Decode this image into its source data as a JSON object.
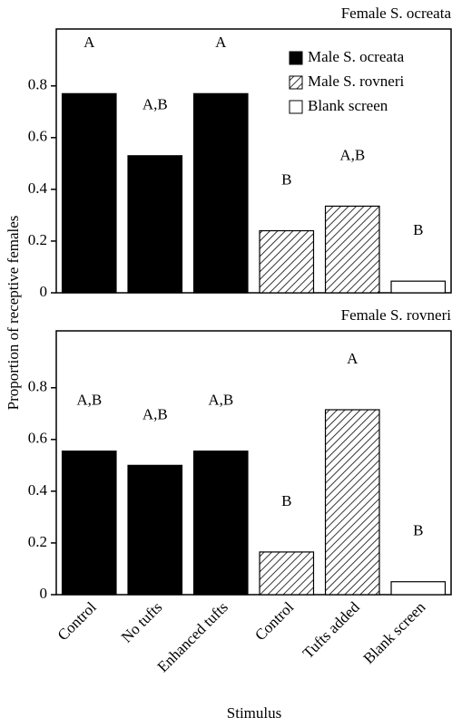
{
  "ylabel": "Proportion of receptive females",
  "xlabel": "Stimulus",
  "chart_data": [
    {
      "type": "bar",
      "title": "Female S. ocreata",
      "legend": "upper right",
      "ylim": [
        0,
        1.02
      ],
      "yticks": [
        0,
        0.2,
        0.4,
        0.6,
        0.8
      ],
      "series": [
        {
          "name": "Male S. ocreata",
          "color": "#000000",
          "fill": "solid",
          "values": [
            0.77,
            0.53,
            0.77,
            null,
            null,
            null
          ]
        },
        {
          "name": "Male S. rovneri",
          "color": "#000000",
          "fill": "hatch",
          "values": [
            null,
            null,
            null,
            0.24,
            0.335,
            null
          ]
        },
        {
          "name": "Blank screen",
          "color": "#ffffff",
          "fill": "solid",
          "values": [
            null,
            null,
            null,
            null,
            null,
            0.045
          ]
        }
      ],
      "annotations": [
        "A",
        "A,B",
        "A",
        "B",
        "A,B",
        "B"
      ]
    },
    {
      "type": "bar",
      "title": "Female S. rovneri",
      "ylim": [
        0,
        1.02
      ],
      "yticks": [
        0,
        0.2,
        0.4,
        0.6,
        0.8
      ],
      "categories": [
        "Control",
        "No tufts",
        "Enhanced tufts",
        "Control",
        "Tufts added",
        "Blank screen"
      ],
      "series": [
        {
          "color": "#000000",
          "fill": "solid",
          "values": [
            0.555,
            0.5,
            0.555,
            null,
            null,
            null
          ]
        },
        {
          "color": "#000000",
          "fill": "hatch",
          "values": [
            null,
            null,
            null,
            0.165,
            0.715,
            null
          ]
        },
        {
          "color": "#ffffff",
          "fill": "solid",
          "values": [
            null,
            null,
            null,
            null,
            null,
            0.05
          ]
        }
      ],
      "annotations": [
        "A,B",
        "A,B",
        "A,B",
        "B",
        "A",
        "B"
      ]
    }
  ]
}
